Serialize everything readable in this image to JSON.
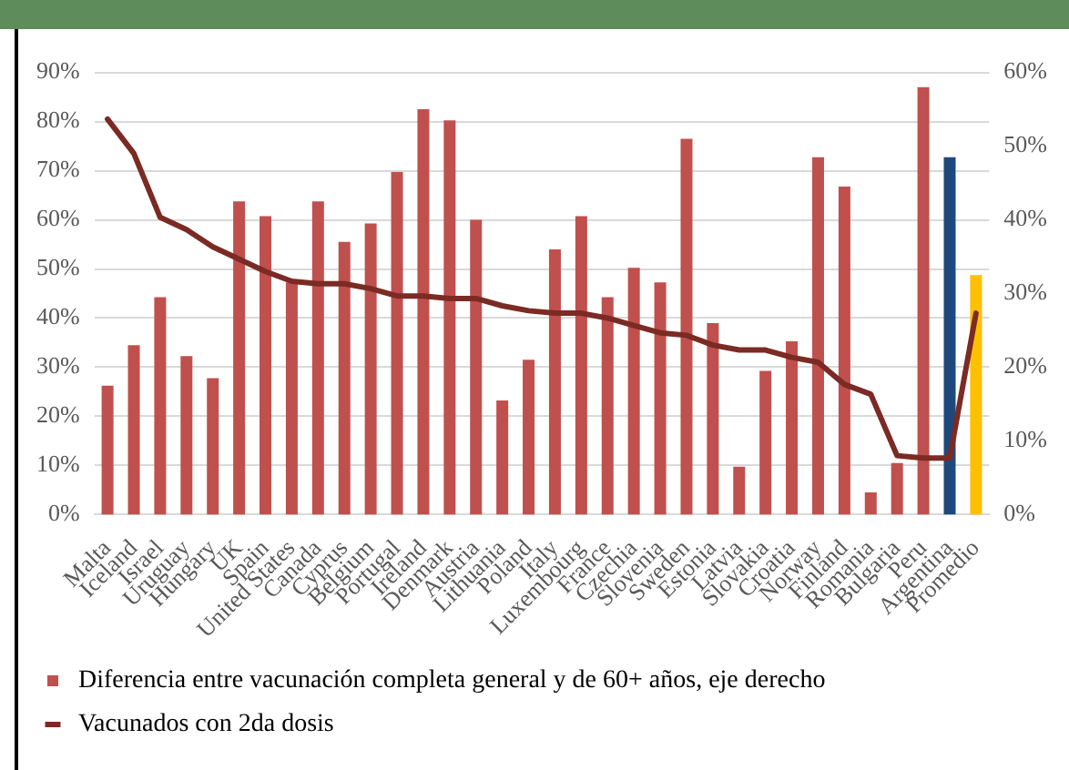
{
  "chart_data": {
    "type": "bar",
    "categories": [
      "Malta",
      "Iceland",
      "Israel",
      "Uruguay",
      "Hungary",
      "UK",
      "Spain",
      "United States",
      "Canada",
      "Cyprus",
      "Belgium",
      "Portugal",
      "Ireland",
      "Denmark",
      "Austria",
      "Lithuania",
      "Poland",
      "Italy",
      "Luxembourg",
      "France",
      "Czechia",
      "Slovenia",
      "Sweden",
      "Estonia",
      "Latvia",
      "Slovakia",
      "Croatia",
      "Norway",
      "Finland",
      "Romania",
      "Bulgaria",
      "Peru",
      "Argentina",
      "Promedio"
    ],
    "series": [
      {
        "name": "Diferencia entre vacunación completa general y de 60+ años, eje derecho",
        "axis": "y2",
        "color": "#c0504d",
        "colors": [
          "#c0504d",
          "#c0504d",
          "#c0504d",
          "#c0504d",
          "#c0504d",
          "#c0504d",
          "#c0504d",
          "#c0504d",
          "#c0504d",
          "#c0504d",
          "#c0504d",
          "#c0504d",
          "#c0504d",
          "#c0504d",
          "#c0504d",
          "#c0504d",
          "#c0504d",
          "#c0504d",
          "#c0504d",
          "#c0504d",
          "#c0504d",
          "#c0504d",
          "#c0504d",
          "#c0504d",
          "#c0504d",
          "#c0504d",
          "#c0504d",
          "#c0504d",
          "#c0504d",
          "#c0504d",
          "#c0504d",
          "#c0504d",
          "#1f497d",
          "#ffc000"
        ],
        "values": [
          17.5,
          23,
          29.5,
          21.5,
          18.5,
          42.5,
          40.5,
          31.5,
          42.5,
          37,
          39.5,
          46.5,
          55,
          53.5,
          40,
          15.5,
          21,
          36,
          40.5,
          29.5,
          33.5,
          31.5,
          51,
          26,
          6.5,
          19.5,
          23.5,
          48.5,
          44.5,
          3,
          7,
          58,
          48.5,
          32.5
        ]
      },
      {
        "name": "Vacunados con 2da dosis",
        "type": "line",
        "color": "#7b2a24",
        "values": [
          80.5,
          73.5,
          60.5,
          58,
          54.5,
          52,
          49.5,
          47.5,
          47,
          47,
          46,
          44.5,
          44.5,
          44,
          44,
          42.5,
          41.5,
          41,
          41,
          40,
          38.5,
          37,
          36.5,
          34.5,
          33.5,
          33.5,
          32,
          31,
          26.5,
          24.5,
          12,
          11.5,
          11.5,
          41
        ]
      }
    ],
    "ylim": [
      0,
      90
    ],
    "yticks": [
      {
        "value": 0,
        "label": "0%"
      },
      {
        "value": 10,
        "label": "10%"
      },
      {
        "value": 20,
        "label": "20%"
      },
      {
        "value": 30,
        "label": "30%"
      },
      {
        "value": 40,
        "label": "40%"
      },
      {
        "value": 50,
        "label": "50%"
      },
      {
        "value": 60,
        "label": "60%"
      },
      {
        "value": 70,
        "label": "70%"
      },
      {
        "value": 80,
        "label": "80%"
      },
      {
        "value": 90,
        "label": "90%"
      }
    ],
    "y2lim": [
      0,
      60
    ],
    "y2ticks": [
      {
        "value": 0,
        "label": "0%"
      },
      {
        "value": 10,
        "label": "10%"
      },
      {
        "value": 20,
        "label": "20%"
      },
      {
        "value": 30,
        "label": "30%"
      },
      {
        "value": 40,
        "label": "40%"
      },
      {
        "value": 50,
        "label": "50%"
      },
      {
        "value": 60,
        "label": "60%"
      }
    ],
    "grid": "y",
    "legend": "bottom",
    "marker": "none",
    "line_style": "solid"
  }
}
